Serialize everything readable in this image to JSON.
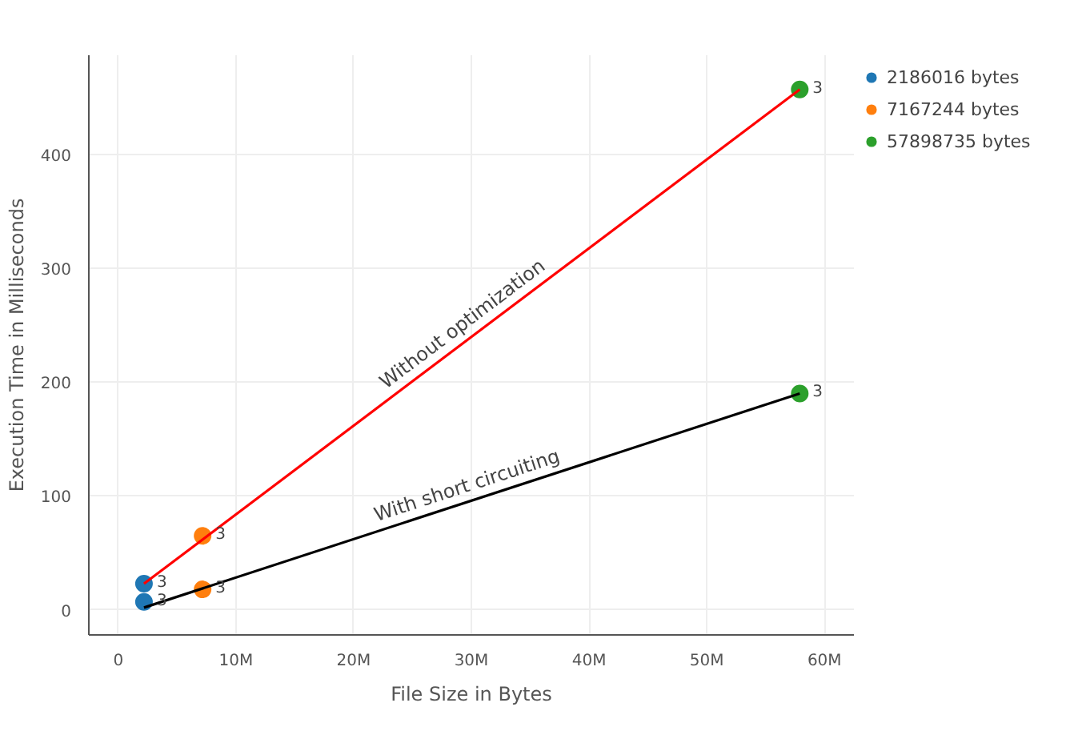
{
  "chart_data": {
    "type": "scatter",
    "xlabel": "File Size in Bytes",
    "ylabel": "Execution Time in Milliseconds",
    "xlim": [
      -2500000,
      62500000
    ],
    "ylim": [
      -22,
      487
    ],
    "xticks": [
      0,
      {
        "value": 10000000,
        "label": "10M"
      },
      {
        "value": 20000000,
        "label": "20M"
      },
      {
        "value": 30000000,
        "label": "30M"
      },
      {
        "value": 40000000,
        "label": "40M"
      },
      {
        "value": 50000000,
        "label": "50M"
      },
      {
        "value": 60000000,
        "label": "60M"
      }
    ],
    "yticks": [
      0,
      100,
      200,
      300,
      400
    ],
    "grid": true,
    "legend": "top right",
    "marker": "circle",
    "series": [
      {
        "name": "2186016 bytes",
        "color": "#1f77b4",
        "x": [
          2186016,
          2186016
        ],
        "values": [
          23,
          7
        ]
      },
      {
        "name": "7167244 bytes",
        "color": "#ff7f0e",
        "x": [
          7167244,
          7167244
        ],
        "values": [
          65,
          18
        ]
      },
      {
        "name": "57898735 bytes",
        "color": "#2ca02c",
        "x": [
          57898735,
          57898735
        ],
        "values": [
          457,
          190
        ]
      },
      {
        "type": "line",
        "marker": "none",
        "color": "#ff0000",
        "x": [
          2186016,
          57898735
        ],
        "values": [
          23,
          457
        ]
      },
      {
        "type": "line",
        "marker": "none",
        "color": "#000000",
        "x": [
          2186016,
          57898735
        ],
        "values": [
          2,
          190
        ]
      }
    ],
    "annotations": [
      "Without optimization",
      "With short circuiting",
      {
        "text": "3",
        "x": 2186016,
        "y": 23
      },
      {
        "text": "3",
        "x": 2186016,
        "y": 7
      },
      {
        "text": "3",
        "x": 7167244,
        "y": 65
      },
      {
        "text": "3",
        "x": 7167244,
        "y": 18
      },
      {
        "text": "3",
        "x": 57898735,
        "y": 457
      },
      {
        "text": "3",
        "x": 57898735,
        "y": 190
      }
    ]
  }
}
